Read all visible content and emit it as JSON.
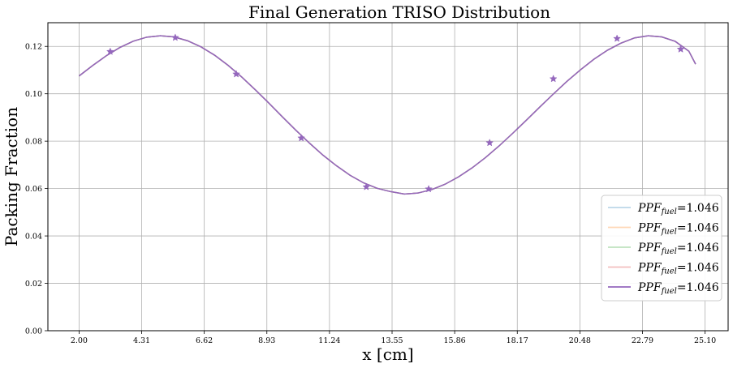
{
  "chart_data": {
    "type": "line",
    "title": "Final Generation TRISO Distribution",
    "xlabel": "x [cm]",
    "ylabel": "Packing Fraction",
    "xlim": [
      0.85,
      25.95
    ],
    "ylim": [
      0.0,
      0.13
    ],
    "x_ticks": [
      "2.00",
      "4.31",
      "6.62",
      "8.93",
      "11.24",
      "13.55",
      "15.86",
      "18.17",
      "20.48",
      "22.79",
      "25.10"
    ],
    "x_tick_values": [
      2.0,
      4.31,
      6.62,
      8.93,
      11.24,
      13.55,
      15.86,
      18.17,
      20.48,
      22.79,
      25.1
    ],
    "y_ticks": [
      "0.00",
      "0.02",
      "0.04",
      "0.06",
      "0.08",
      "0.10",
      "0.12"
    ],
    "y_tick_values": [
      0.0,
      0.02,
      0.04,
      0.06,
      0.08,
      0.1,
      0.12
    ],
    "grid": true,
    "legend_position": "lower-right",
    "series": [
      {
        "name_base": "PPF",
        "name_sub": "fuel",
        "name_value": "=1.046",
        "color": "#1f77b4",
        "opacity": 0.3
      },
      {
        "name_base": "PPF",
        "name_sub": "fuel",
        "name_value": "=1.046",
        "color": "#ff7f0e",
        "opacity": 0.3
      },
      {
        "name_base": "PPF",
        "name_sub": "fuel",
        "name_value": "=1.046",
        "color": "#2ca02c",
        "opacity": 0.3
      },
      {
        "name_base": "PPF",
        "name_sub": "fuel",
        "name_value": "=1.046",
        "color": "#d62728",
        "opacity": 0.3
      },
      {
        "name_base": "PPF",
        "name_sub": "fuel",
        "name_value": "=1.046",
        "color": "#9467bd",
        "opacity": 1.0
      }
    ],
    "curve_x": [
      2.0,
      2.5,
      3.0,
      3.5,
      4.0,
      4.5,
      5.0,
      5.5,
      6.0,
      6.5,
      7.0,
      7.5,
      8.0,
      8.5,
      9.0,
      9.5,
      10.0,
      10.5,
      11.0,
      11.5,
      12.0,
      12.5,
      13.0,
      13.5,
      14.0,
      14.5,
      15.0,
      15.5,
      16.0,
      16.5,
      17.0,
      17.5,
      18.0,
      18.5,
      19.0,
      19.5,
      20.0,
      20.5,
      21.0,
      21.5,
      22.0,
      22.5,
      23.0,
      23.5,
      24.0,
      24.5,
      24.75
    ],
    "curve_y": [
      0.1075,
      0.1119,
      0.116,
      0.1195,
      0.1222,
      0.1239,
      0.1245,
      0.124,
      0.1224,
      0.1198,
      0.1163,
      0.112,
      0.1071,
      0.1017,
      0.0961,
      0.0903,
      0.0846,
      0.0792,
      0.0741,
      0.0696,
      0.0656,
      0.0624,
      0.0601,
      0.0587,
      0.0577,
      0.0581,
      0.0595,
      0.0618,
      0.0649,
      0.0687,
      0.0731,
      0.078,
      0.0833,
      0.0888,
      0.0944,
      0.0999,
      0.1052,
      0.1101,
      0.1146,
      0.1184,
      0.1214,
      0.1236,
      0.1245,
      0.124,
      0.1221,
      0.118,
      0.1125
    ],
    "markers_x": [
      3.15,
      5.55,
      7.8,
      10.2,
      12.6,
      14.9,
      17.15,
      19.5,
      21.85,
      24.2
    ],
    "markers_y": [
      0.1178,
      0.1237,
      0.1083,
      0.0813,
      0.0607,
      0.0598,
      0.0793,
      0.1063,
      0.1233,
      0.1188
    ]
  }
}
